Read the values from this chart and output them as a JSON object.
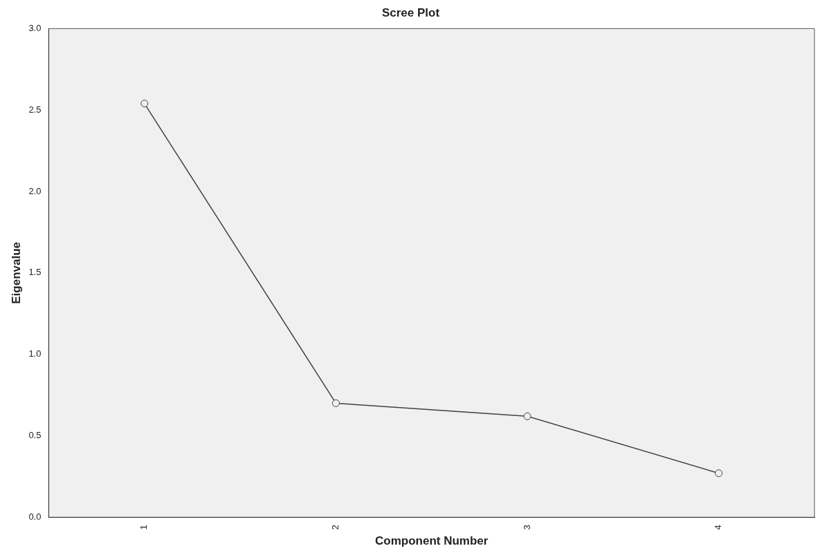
{
  "chart_data": {
    "type": "line",
    "title": "Scree Plot",
    "xlabel": "Component Number",
    "ylabel": "Eigenvalue",
    "categories": [
      "1",
      "2",
      "3",
      "4"
    ],
    "series": [
      {
        "color": "#404040",
        "values": [
          2.54,
          0.7,
          0.62,
          0.27
        ]
      }
    ],
    "ylim": [
      0,
      3
    ],
    "yticks": [
      {
        "value": 0,
        "label": "0.0"
      },
      {
        "value": 0.5,
        "label": "0.5"
      },
      {
        "value": 1,
        "label": "1.0"
      },
      {
        "value": 1.5,
        "label": "1.5"
      },
      {
        "value": 2,
        "label": "2.0"
      },
      {
        "value": 2.5,
        "label": "2.5"
      },
      {
        "value": 3,
        "label": "3.0"
      }
    ],
    "grid": false,
    "legend": false,
    "marker": "circle",
    "line_style": "solid"
  }
}
